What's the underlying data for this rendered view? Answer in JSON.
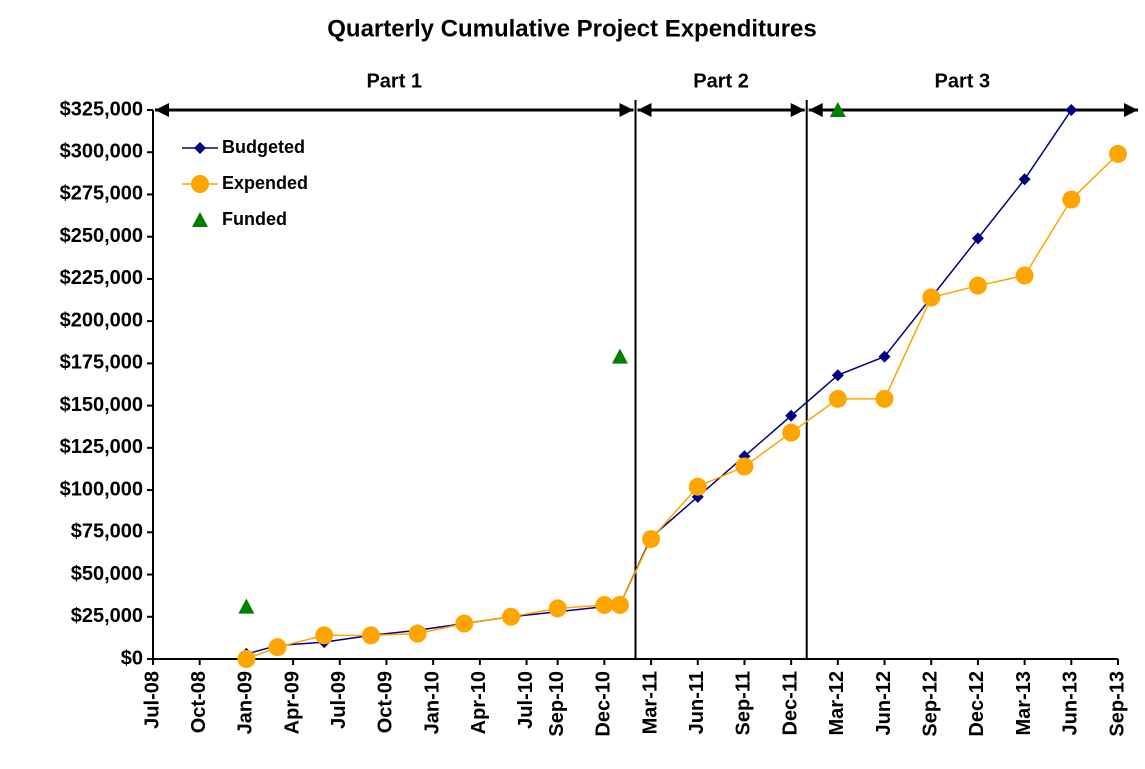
{
  "chart_data": {
    "type": "line",
    "title": "Quarterly Cumulative Project Expenditures",
    "x": [
      "2009-01",
      "2009-03",
      "2009-06",
      "2009-09",
      "2009-12",
      "2010-03",
      "2010-06",
      "2010-09",
      "2010-12",
      "2011-01",
      "2011-03",
      "2011-06",
      "2011-09",
      "2011-12",
      "2012-03",
      "2012-06",
      "2012-09",
      "2012-12",
      "2013-03",
      "2013-06",
      "2013-09"
    ],
    "series": [
      {
        "name": "Budgeted",
        "color": "#000080",
        "marker": "diamond",
        "line": true,
        "values": [
          3000,
          8000,
          10000,
          14000,
          17000,
          21000,
          25000,
          28000,
          31000,
          32000,
          72000,
          96000,
          120000,
          144000,
          168000,
          179000,
          214000,
          249000,
          284000,
          325000,
          null
        ]
      },
      {
        "name": "Expended",
        "color": "#ffa500",
        "marker": "circle",
        "line": true,
        "values": [
          0,
          7000,
          14000,
          14000,
          15000,
          21000,
          25000,
          30000,
          32000,
          32000,
          71000,
          102000,
          114000,
          134000,
          154000,
          154000,
          214000,
          221000,
          227000,
          272000,
          299000
        ]
      },
      {
        "name": "Funded",
        "color": "#008000",
        "marker": "triangle",
        "line": false,
        "values": [
          31000,
          null,
          null,
          null,
          null,
          null,
          null,
          null,
          null,
          179000,
          null,
          null,
          null,
          null,
          325000,
          null,
          null,
          null,
          null,
          null,
          null
        ]
      }
    ],
    "xlim": [
      "2008-07",
      "2013-09"
    ],
    "xticks": [
      {
        "value": "2008-07",
        "label": "Jul-08"
      },
      {
        "value": "2008-10",
        "label": "Oct-08"
      },
      {
        "value": "2009-01",
        "label": "Jan-09"
      },
      {
        "value": "2009-04",
        "label": "Apr-09"
      },
      {
        "value": "2009-07",
        "label": "Jul-09"
      },
      {
        "value": "2009-10",
        "label": "Oct-09"
      },
      {
        "value": "2010-01",
        "label": "Jan-10"
      },
      {
        "value": "2010-04",
        "label": "Apr-10"
      },
      {
        "value": "2010-07",
        "label": "Jul-10"
      },
      {
        "value": "2010-09",
        "label": "Sep-10"
      },
      {
        "value": "2010-12",
        "label": "Dec-10"
      },
      {
        "value": "2011-03",
        "label": "Mar-11"
      },
      {
        "value": "2011-06",
        "label": "Jun-11"
      },
      {
        "value": "2011-09",
        "label": "Sep-11"
      },
      {
        "value": "2011-12",
        "label": "Dec-11"
      },
      {
        "value": "2012-03",
        "label": "Mar-12"
      },
      {
        "value": "2012-06",
        "label": "Jun-12"
      },
      {
        "value": "2012-09",
        "label": "Sep-12"
      },
      {
        "value": "2012-12",
        "label": "Dec-12"
      },
      {
        "value": "2013-03",
        "label": "Mar-13"
      },
      {
        "value": "2013-06",
        "label": "Jun-13"
      },
      {
        "value": "2013-09",
        "label": "Sep-13"
      }
    ],
    "ylim": [
      0,
      325000
    ],
    "yticks": [
      {
        "value": 0,
        "label": "$0"
      },
      {
        "value": 25000,
        "label": "$25,000"
      },
      {
        "value": 50000,
        "label": "$50,000"
      },
      {
        "value": 75000,
        "label": "$75,000"
      },
      {
        "value": 100000,
        "label": "$100,000"
      },
      {
        "value": 125000,
        "label": "$125,000"
      },
      {
        "value": 150000,
        "label": "$150,000"
      },
      {
        "value": 175000,
        "label": "$175,000"
      },
      {
        "value": 200000,
        "label": "$200,000"
      },
      {
        "value": 225000,
        "label": "$225,000"
      },
      {
        "value": 250000,
        "label": "$250,000"
      },
      {
        "value": 275000,
        "label": "$275,000"
      },
      {
        "value": 300000,
        "label": "$300,000"
      },
      {
        "value": 325000,
        "label": "$325,000"
      }
    ],
    "dividers": [
      "2011-02",
      "2012-01"
    ],
    "parts": [
      "Part 1",
      "Part 2",
      "Part 3"
    ],
    "legend": "top-left",
    "grid": false
  }
}
